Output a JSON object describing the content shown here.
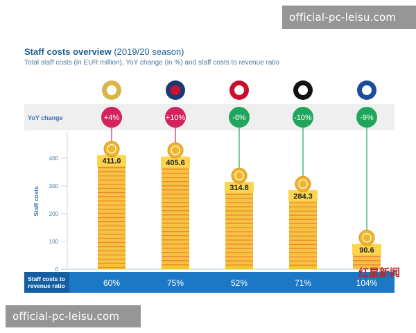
{
  "header": {
    "title_bold": "Staff costs overview",
    "title_rest": " (2019/20 season)",
    "subtitle": "Total staff costs (in EUR million), YoY change (in %) and staff costs to revenue ratio"
  },
  "watermarks": {
    "top": "official-pc-leisu.com",
    "bottom": "official-pc-leisu.com"
  },
  "corner_mark": "红星新闻",
  "chart_data": {
    "type": "bar",
    "categories": [
      "Real Madrid",
      "Paris Saint-Germain",
      "Bayern Munich",
      "Juventus",
      "FC Porto"
    ],
    "logo_icons": [
      "real-madrid-crest-icon",
      "psg-crest-icon",
      "bayern-crest-icon",
      "juventus-crest-icon",
      "porto-crest-icon"
    ],
    "values": [
      411.0,
      405.6,
      314.8,
      284.3,
      90.6
    ],
    "value_labels": [
      "411.0",
      "405.6",
      "314.8",
      "284.3",
      "90.6"
    ],
    "yoy_change_label": "YoY change",
    "yoy_change": [
      "+4%",
      "+10%",
      "-6%",
      "-10%",
      "-9%"
    ],
    "ratio_label": "Staff costs to revenue ratio",
    "ratio_label_lines": [
      "Staff costs to",
      "revenue ratio"
    ],
    "ratio": [
      "60%",
      "75%",
      "52%",
      "71%",
      "104%"
    ],
    "ylabel": "Staff costs",
    "yticks": [
      0,
      100,
      200,
      300,
      400
    ],
    "ylim": [
      0,
      450
    ],
    "colors": {
      "bar": "#f5c242",
      "bar_stripe": "#ef8a32",
      "increase": "#d3225f",
      "decrease": "#1fa65c",
      "ratio_band": "#1b78c5",
      "yoy_band": "#efefef",
      "axis": "#4a7aa3"
    }
  }
}
